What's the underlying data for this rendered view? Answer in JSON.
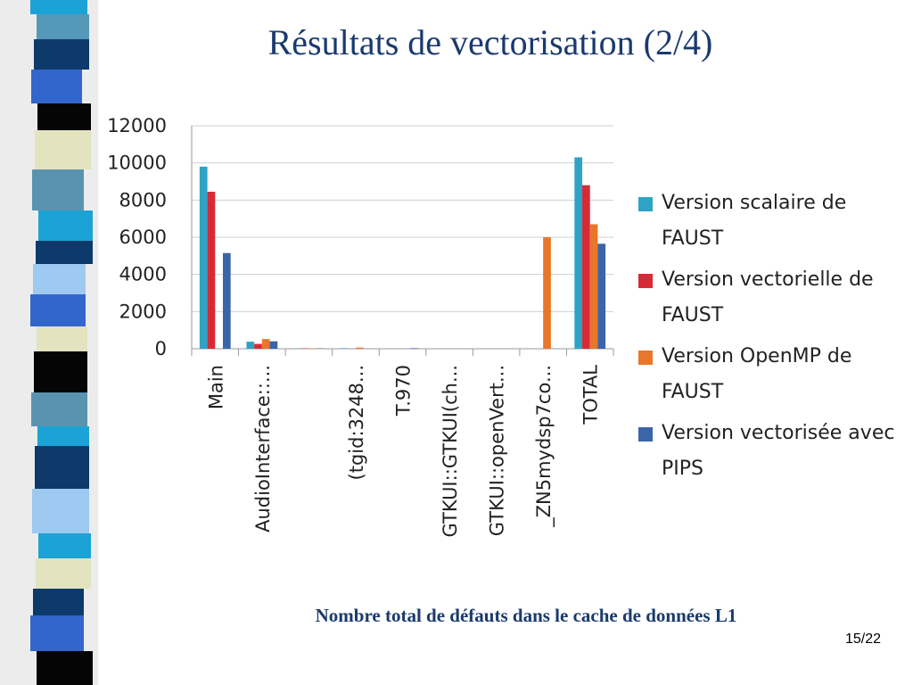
{
  "slide": {
    "title": "Résultats de vectorisation (2/4)",
    "caption": "Nombre total de défauts dans le cache de données L1",
    "page": "15/22"
  },
  "colors": {
    "scalar": "#2ea3c5",
    "vector": "#d72a35",
    "openmp": "#e8762b",
    "pips": "#3a65a8",
    "title": "#1a3a6e"
  },
  "chart_data": {
    "type": "bar",
    "title": "",
    "xlabel": "",
    "ylabel": "",
    "ylim": [
      0,
      12000
    ],
    "yticks": [
      0,
      2000,
      4000,
      6000,
      8000,
      10000,
      12000
    ],
    "grid": true,
    "legend_position": "right",
    "categories": [
      "Main",
      "AudioInterface::...",
      "",
      "(tgid:3248...",
      "T.970",
      "GTKUI::GTKUI(ch...",
      "GTKUI::openVert...",
      "_ZN5mydsp7co...",
      "TOTAL"
    ],
    "series": [
      {
        "name": "Version scalaire de FAUST",
        "values": [
          9800,
          380,
          20,
          30,
          0,
          0,
          0,
          0,
          10300
        ]
      },
      {
        "name": "Version vectorielle de FAUST",
        "values": [
          8450,
          260,
          20,
          0,
          0,
          0,
          0,
          0,
          8800
        ]
      },
      {
        "name": "Version OpenMP de FAUST",
        "values": [
          0,
          520,
          20,
          60,
          0,
          0,
          0,
          6000,
          6700
        ]
      },
      {
        "name": "Version vectorisée avec  PIPS",
        "values": [
          5150,
          400,
          20,
          0,
          30,
          0,
          0,
          0,
          5650
        ]
      }
    ]
  }
}
